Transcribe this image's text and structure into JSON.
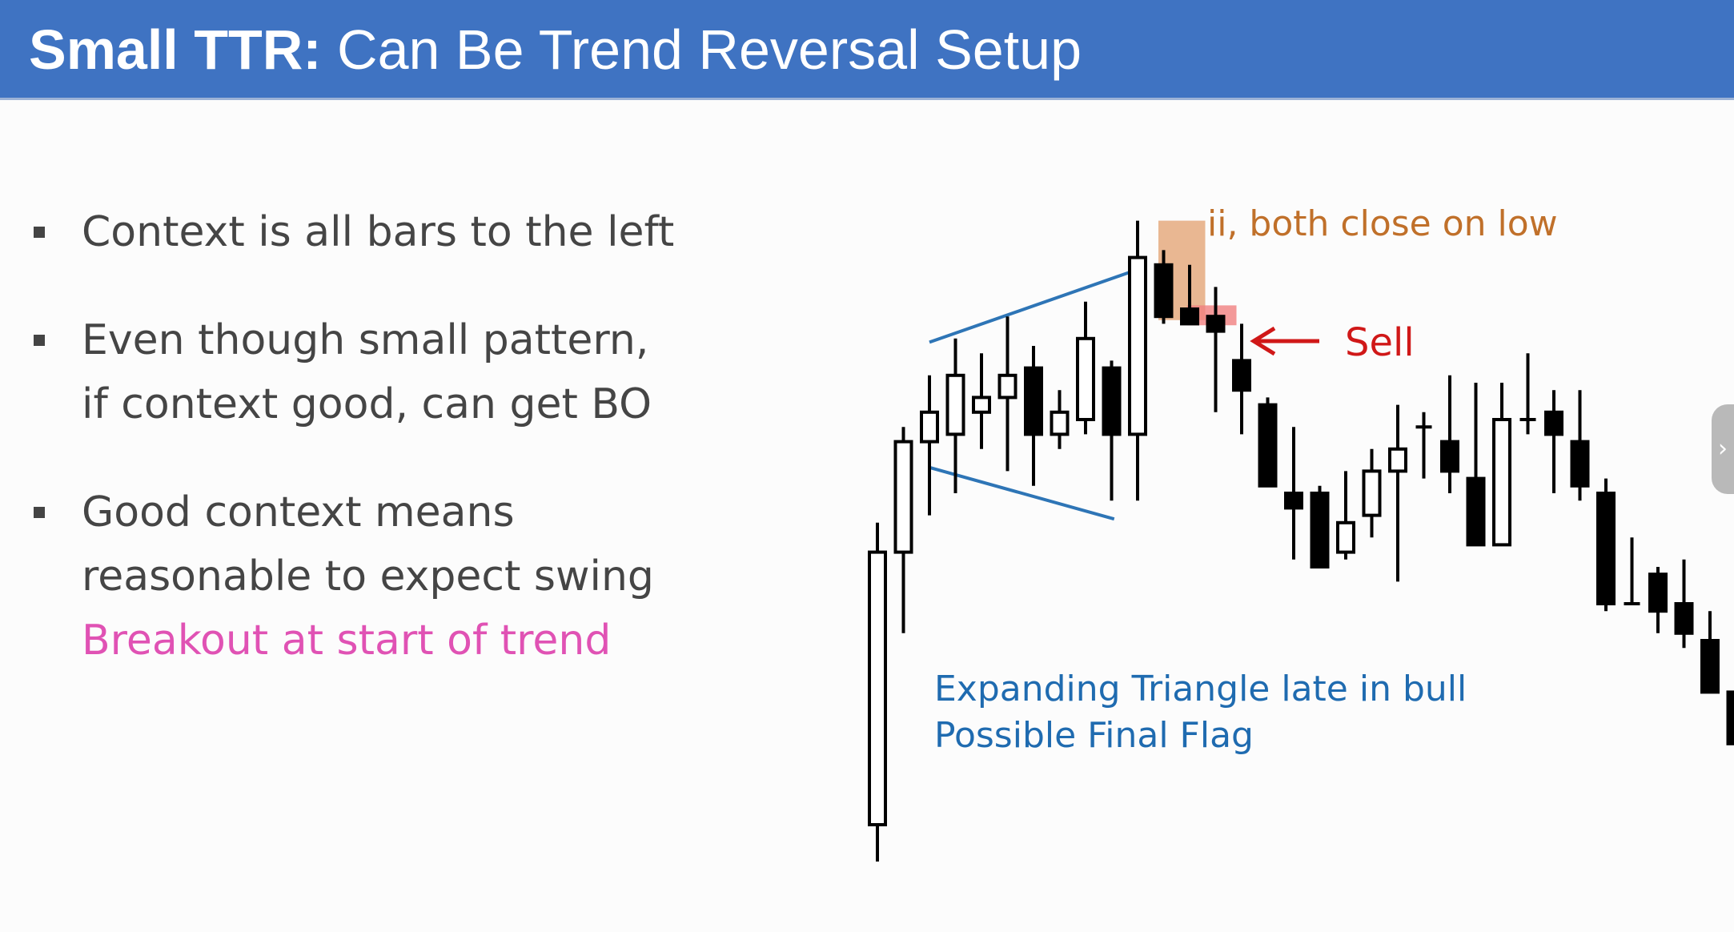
{
  "slide": {
    "title_bold": "Small TTR:",
    "title_rest": " Can Be Trend Reversal Setup",
    "bullets": [
      {
        "lines": [
          "Context is all bars to the left"
        ]
      },
      {
        "lines": [
          "Even though small pattern,",
          "if context good, can get BO"
        ]
      },
      {
        "lines": [
          "Good context means",
          "reasonable to expect swing"
        ],
        "highlight": "Breakout at start of trend"
      }
    ]
  },
  "colors": {
    "header": "#3f73c2",
    "bullet_text": "#454545",
    "highlight": "#e052b4",
    "trendline": "#2e75b6",
    "ii_box": "#e3a06f",
    "ii_label": "#c0702a",
    "sell_box": "#f08080",
    "sell": "#d01818",
    "triangle_label": "#1f6bb0"
  },
  "chart_data": {
    "type": "candlestick",
    "title": "",
    "note": "price axis unlabeled; values in relative price units",
    "bars": [
      {
        "o": 5,
        "h": 46,
        "c": 42,
        "l": 0
      },
      {
        "o": 42,
        "h": 59,
        "c": 57,
        "l": 31
      },
      {
        "o": 57,
        "h": 66,
        "c": 61,
        "l": 47
      },
      {
        "o": 58,
        "h": 71,
        "c": 66,
        "l": 50
      },
      {
        "o": 61,
        "h": 69,
        "c": 63,
        "l": 56
      },
      {
        "o": 63,
        "h": 74,
        "c": 66,
        "l": 53
      },
      {
        "o": 67,
        "h": 70,
        "c": 58,
        "l": 51
      },
      {
        "o": 58,
        "h": 64,
        "c": 61,
        "l": 56
      },
      {
        "o": 60,
        "h": 76,
        "c": 71,
        "l": 58
      },
      {
        "o": 67,
        "h": 68,
        "c": 58,
        "l": 49
      },
      {
        "o": 58,
        "h": 87,
        "c": 82,
        "l": 49
      },
      {
        "o": 81,
        "h": 83,
        "c": 74,
        "l": 73
      },
      {
        "o": 75,
        "h": 81,
        "c": 73,
        "l": 74
      },
      {
        "o": 74,
        "h": 78,
        "c": 72,
        "l": 61
      },
      {
        "o": 68,
        "h": 73,
        "c": 64,
        "l": 58
      },
      {
        "o": 62,
        "h": 63,
        "c": 51,
        "l": 51
      },
      {
        "o": 50,
        "h": 59,
        "c": 48,
        "l": 41
      },
      {
        "o": 50,
        "h": 51,
        "c": 40,
        "l": 41
      },
      {
        "o": 42,
        "h": 53,
        "c": 46,
        "l": 41
      },
      {
        "o": 47,
        "h": 56,
        "c": 53,
        "l": 44
      },
      {
        "o": 53,
        "h": 62,
        "c": 56,
        "l": 38
      },
      {
        "o": 59,
        "h": 61,
        "c": 59,
        "l": 52
      },
      {
        "o": 57,
        "h": 66,
        "c": 53,
        "l": 50
      },
      {
        "o": 52,
        "h": 65,
        "c": 43,
        "l": 43
      },
      {
        "o": 43,
        "h": 65,
        "c": 60,
        "l": 43
      },
      {
        "o": 60,
        "h": 69,
        "c": 60,
        "l": 58
      },
      {
        "o": 61,
        "h": 64,
        "c": 58,
        "l": 50
      },
      {
        "o": 57,
        "h": 64,
        "c": 51,
        "l": 49
      },
      {
        "o": 50,
        "h": 52,
        "c": 35,
        "l": 34
      },
      {
        "o": 35,
        "h": 44,
        "c": 35,
        "l": 35
      },
      {
        "o": 39,
        "h": 40,
        "c": 34,
        "l": 31
      },
      {
        "o": 35,
        "h": 41,
        "c": 31,
        "l": 29
      },
      {
        "o": 30,
        "h": 34,
        "c": 23,
        "l": 23
      },
      {
        "o": 23,
        "h": 30,
        "c": 16,
        "l": 16
      }
    ],
    "annotations": [
      {
        "text": "ii, both close on low"
      },
      {
        "text": "Sell"
      },
      {
        "lines": [
          "Expanding Triangle late in bull",
          "Possible Final Flag"
        ]
      }
    ]
  }
}
